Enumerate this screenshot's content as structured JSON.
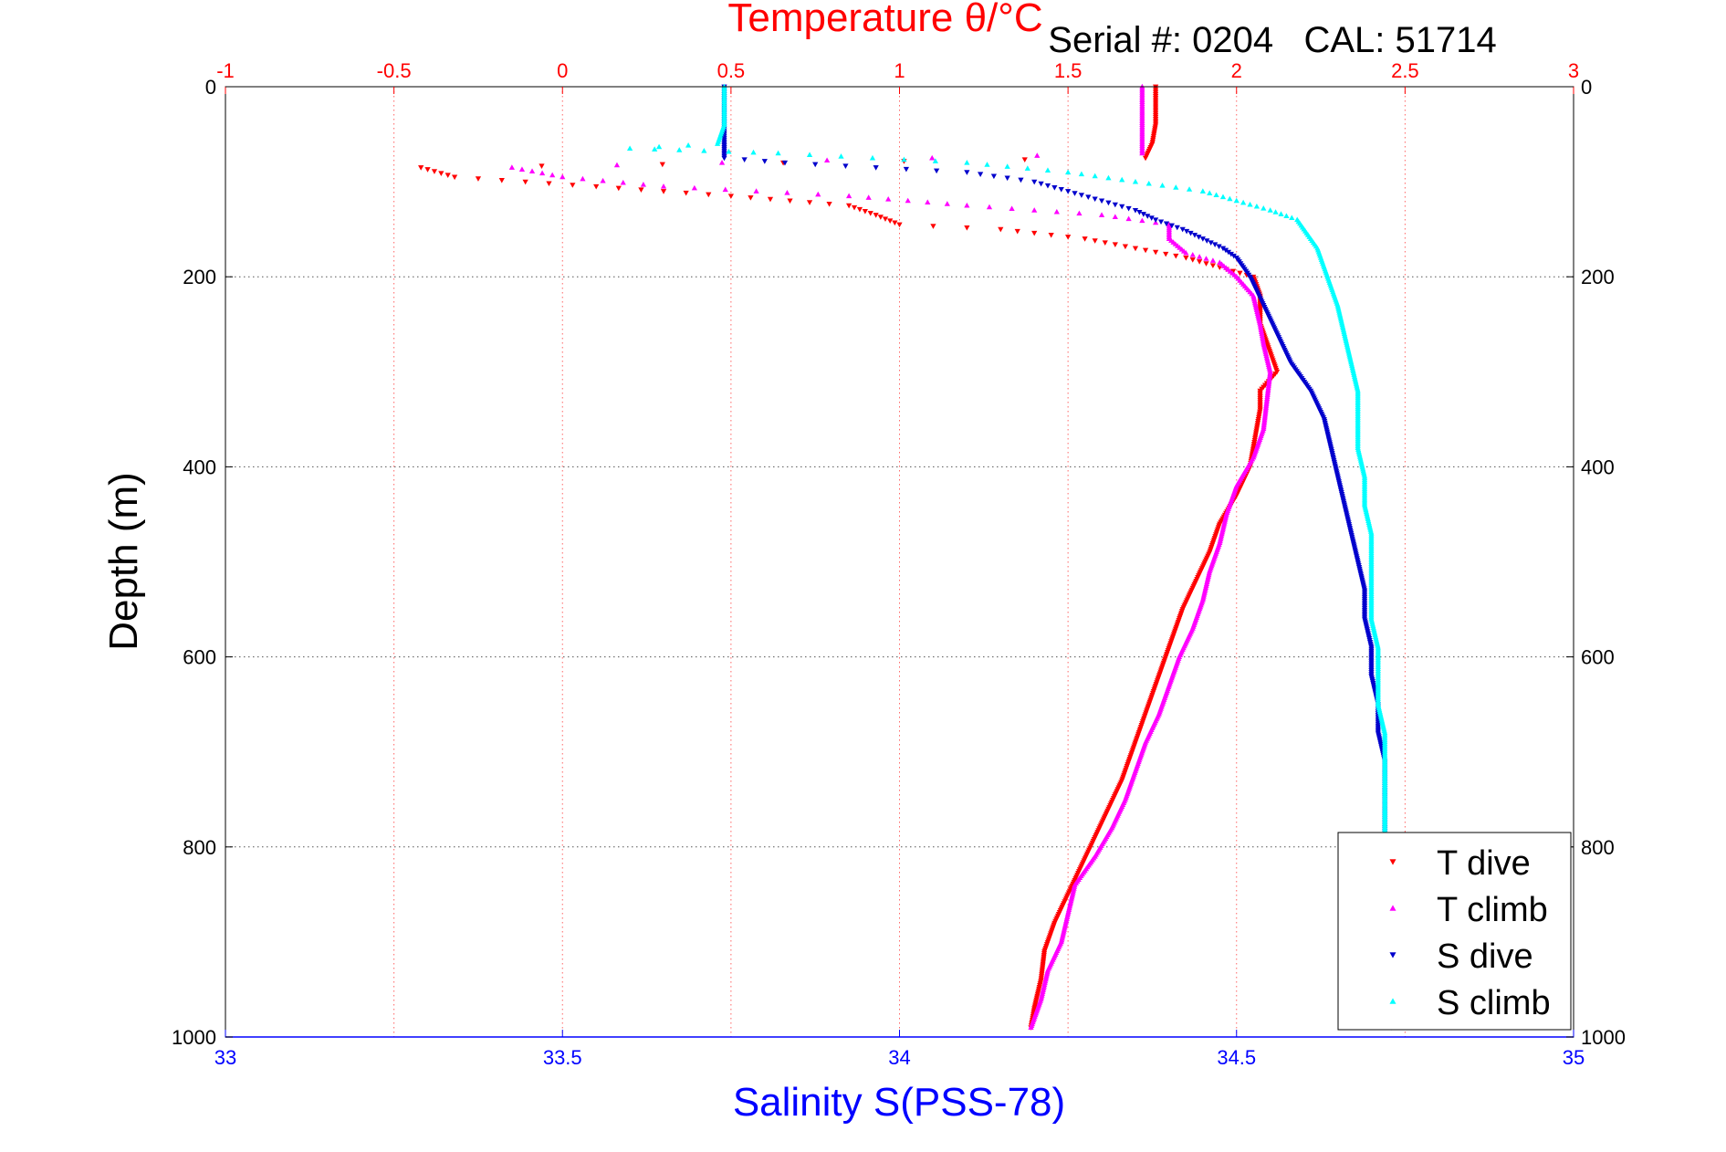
{
  "chart_data": {
    "type": "scatter",
    "top_axis": {
      "label": "Temperature θ/°C",
      "range": [
        -1,
        3
      ],
      "ticks": [
        "-1",
        "-0.5",
        "0",
        "0.5",
        "1",
        "1.5",
        "2",
        "2.5",
        "3"
      ],
      "color": "#ff0000"
    },
    "bottom_axis": {
      "label": "Salinity S(PSS-78)",
      "range": [
        33,
        35
      ],
      "ticks": [
        "33",
        "33.5",
        "34",
        "34.5",
        "35"
      ],
      "color": "#0000ff"
    },
    "y_axis": {
      "label": "Depth (m)",
      "range": [
        0,
        1000
      ],
      "ticks": [
        "0",
        "200",
        "400",
        "600",
        "800",
        "1000"
      ],
      "inverted": true
    },
    "annotation": "Serial #: 0204   CAL: 51714",
    "grid": true,
    "legend_position": "bottom-right",
    "series": [
      {
        "name": "T dive",
        "axis": "temperature",
        "color": "#ff0000",
        "marker": "triangle-down",
        "points": [
          [
            1.76,
            0
          ],
          [
            1.76,
            20
          ],
          [
            1.76,
            40
          ],
          [
            1.75,
            60
          ],
          [
            1.73,
            75
          ],
          [
            -0.42,
            85
          ],
          [
            -0.32,
            95
          ],
          [
            0.1,
            105
          ],
          [
            0.5,
            115
          ],
          [
            0.85,
            125
          ],
          [
            0.93,
            135
          ],
          [
            1.0,
            145
          ],
          [
            1.3,
            150
          ],
          [
            1.55,
            160
          ],
          [
            1.7,
            170
          ],
          [
            1.85,
            180
          ],
          [
            1.95,
            190
          ],
          [
            2.05,
            200
          ],
          [
            2.07,
            220
          ],
          [
            2.07,
            250
          ],
          [
            2.1,
            280
          ],
          [
            2.12,
            300
          ],
          [
            2.07,
            320
          ],
          [
            2.07,
            340
          ],
          [
            2.06,
            360
          ],
          [
            2.05,
            380
          ],
          [
            2.04,
            400
          ],
          [
            2.0,
            430
          ],
          [
            1.95,
            460
          ],
          [
            1.92,
            490
          ],
          [
            1.88,
            520
          ],
          [
            1.84,
            550
          ],
          [
            1.81,
            580
          ],
          [
            1.78,
            610
          ],
          [
            1.75,
            640
          ],
          [
            1.72,
            670
          ],
          [
            1.69,
            700
          ],
          [
            1.66,
            730
          ],
          [
            1.62,
            760
          ],
          [
            1.58,
            790
          ],
          [
            1.54,
            820
          ],
          [
            1.5,
            850
          ],
          [
            1.46,
            880
          ],
          [
            1.43,
            910
          ],
          [
            1.42,
            940
          ],
          [
            1.4,
            970
          ],
          [
            1.39,
            990
          ]
        ]
      },
      {
        "name": "T climb",
        "axis": "temperature",
        "color": "#ff00ff",
        "marker": "triangle-up",
        "points": [
          [
            1.72,
            0
          ],
          [
            1.72,
            20
          ],
          [
            1.72,
            40
          ],
          [
            1.72,
            60
          ],
          [
            1.72,
            70
          ],
          [
            -0.15,
            85
          ],
          [
            0.0,
            95
          ],
          [
            0.3,
            105
          ],
          [
            0.85,
            115
          ],
          [
            1.2,
            125
          ],
          [
            1.6,
            135
          ],
          [
            1.8,
            145
          ],
          [
            1.8,
            160
          ],
          [
            1.85,
            175
          ],
          [
            1.95,
            185
          ],
          [
            2.0,
            200
          ],
          [
            2.05,
            220
          ],
          [
            2.07,
            250
          ],
          [
            2.08,
            270
          ],
          [
            2.1,
            300
          ],
          [
            2.09,
            330
          ],
          [
            2.08,
            360
          ],
          [
            2.05,
            390
          ],
          [
            2.0,
            420
          ],
          [
            1.97,
            450
          ],
          [
            1.95,
            480
          ],
          [
            1.92,
            510
          ],
          [
            1.9,
            540
          ],
          [
            1.87,
            570
          ],
          [
            1.83,
            600
          ],
          [
            1.8,
            630
          ],
          [
            1.77,
            660
          ],
          [
            1.73,
            690
          ],
          [
            1.7,
            720
          ],
          [
            1.67,
            750
          ],
          [
            1.63,
            780
          ],
          [
            1.58,
            810
          ],
          [
            1.52,
            840
          ],
          [
            1.5,
            870
          ],
          [
            1.48,
            900
          ],
          [
            1.44,
            930
          ],
          [
            1.42,
            960
          ],
          [
            1.39,
            990
          ]
        ]
      },
      {
        "name": "S dive",
        "axis": "salinity",
        "color": "#0000cc",
        "marker": "triangle-down",
        "points": [
          [
            33.74,
            0
          ],
          [
            33.74,
            20
          ],
          [
            33.74,
            40
          ],
          [
            33.74,
            60
          ],
          [
            33.74,
            75
          ],
          [
            33.83,
            80
          ],
          [
            34.1,
            90
          ],
          [
            34.2,
            100
          ],
          [
            34.25,
            110
          ],
          [
            34.3,
            120
          ],
          [
            34.35,
            130
          ],
          [
            34.38,
            140
          ],
          [
            34.42,
            150
          ],
          [
            34.45,
            160
          ],
          [
            34.48,
            170
          ],
          [
            34.5,
            180
          ],
          [
            34.52,
            200
          ],
          [
            34.54,
            230
          ],
          [
            34.56,
            260
          ],
          [
            34.58,
            290
          ],
          [
            34.61,
            320
          ],
          [
            34.63,
            350
          ],
          [
            34.64,
            380
          ],
          [
            34.65,
            410
          ],
          [
            34.66,
            440
          ],
          [
            34.67,
            470
          ],
          [
            34.68,
            500
          ],
          [
            34.69,
            530
          ],
          [
            34.69,
            560
          ],
          [
            34.7,
            590
          ],
          [
            34.7,
            620
          ],
          [
            34.71,
            650
          ],
          [
            34.71,
            680
          ],
          [
            34.72,
            710
          ],
          [
            34.72,
            740
          ],
          [
            34.72,
            770
          ],
          [
            34.72,
            800
          ],
          [
            34.72,
            830
          ],
          [
            34.72,
            860
          ],
          [
            34.72,
            890
          ],
          [
            34.72,
            920
          ],
          [
            34.73,
            950
          ],
          [
            34.73,
            990
          ]
        ]
      },
      {
        "name": "S climb",
        "axis": "salinity",
        "color": "#00ffff",
        "marker": "triangle-up",
        "points": [
          [
            33.74,
            0
          ],
          [
            33.74,
            20
          ],
          [
            33.74,
            40
          ],
          [
            33.73,
            60
          ],
          [
            33.6,
            65
          ],
          [
            33.82,
            70
          ],
          [
            34.1,
            80
          ],
          [
            34.25,
            90
          ],
          [
            34.35,
            100
          ],
          [
            34.45,
            110
          ],
          [
            34.5,
            120
          ],
          [
            34.55,
            130
          ],
          [
            34.59,
            140
          ],
          [
            34.6,
            150
          ],
          [
            34.62,
            170
          ],
          [
            34.63,
            190
          ],
          [
            34.64,
            210
          ],
          [
            34.65,
            230
          ],
          [
            34.66,
            260
          ],
          [
            34.67,
            290
          ],
          [
            34.68,
            320
          ],
          [
            34.68,
            350
          ],
          [
            34.68,
            380
          ],
          [
            34.69,
            410
          ],
          [
            34.69,
            440
          ],
          [
            34.7,
            470
          ],
          [
            34.7,
            500
          ],
          [
            34.7,
            530
          ],
          [
            34.7,
            560
          ],
          [
            34.71,
            590
          ],
          [
            34.71,
            620
          ],
          [
            34.71,
            650
          ],
          [
            34.72,
            680
          ],
          [
            34.72,
            710
          ],
          [
            34.72,
            740
          ],
          [
            34.72,
            770
          ],
          [
            34.72,
            800
          ],
          [
            34.72,
            830
          ],
          [
            34.73,
            860
          ],
          [
            34.73,
            890
          ],
          [
            34.73,
            920
          ],
          [
            34.73,
            950
          ],
          [
            34.73,
            990
          ]
        ]
      }
    ]
  }
}
